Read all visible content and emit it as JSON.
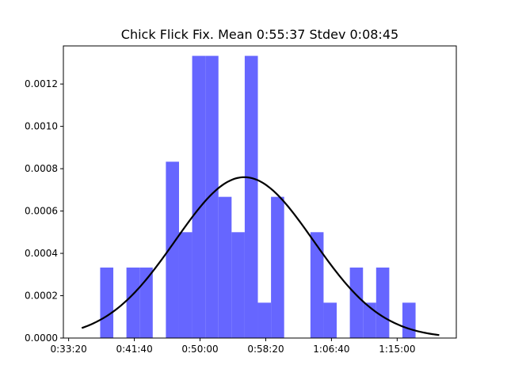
{
  "chart_data": {
    "type": "bar",
    "title": "Chick Flick Fix. Mean 0:55:37 Stdev 0:08:45",
    "xlabel": "",
    "ylabel": "",
    "xlim_seconds": [
      1960,
      4950
    ],
    "ylim": [
      0,
      0.00138
    ],
    "x_ticks": [
      {
        "value": 2000,
        "label": "0:33:20"
      },
      {
        "value": 2500,
        "label": "0:41:40"
      },
      {
        "value": 3000,
        "label": "0:50:00"
      },
      {
        "value": 3500,
        "label": "0:58:20"
      },
      {
        "value": 4000,
        "label": "1:06:40"
      },
      {
        "value": 4500,
        "label": "1:15:00"
      }
    ],
    "y_ticks": [
      {
        "value": 0.0,
        "label": "0.0000"
      },
      {
        "value": 0.0002,
        "label": "0.0002"
      },
      {
        "value": 0.0004,
        "label": "0.0004"
      },
      {
        "value": 0.0006,
        "label": "0.0006"
      },
      {
        "value": 0.0008,
        "label": "0.0008"
      },
      {
        "value": 0.001,
        "label": "0.0010"
      },
      {
        "value": 0.0012,
        "label": "0.0012"
      }
    ],
    "histogram": {
      "color": "#6666ff",
      "bin_width_seconds": 100,
      "bins": [
        {
          "start": 2240,
          "density": 0.000333
        },
        {
          "start": 2340,
          "density": 0.0
        },
        {
          "start": 2440,
          "density": 0.000333
        },
        {
          "start": 2540,
          "density": 0.000333
        },
        {
          "start": 2640,
          "density": 0.0
        },
        {
          "start": 2740,
          "density": 0.000833
        },
        {
          "start": 2840,
          "density": 0.0005
        },
        {
          "start": 2940,
          "density": 0.001333
        },
        {
          "start": 3040,
          "density": 0.001333
        },
        {
          "start": 3140,
          "density": 0.000667
        },
        {
          "start": 3240,
          "density": 0.0005
        },
        {
          "start": 3340,
          "density": 0.001333
        },
        {
          "start": 3440,
          "density": 0.000167
        },
        {
          "start": 3540,
          "density": 0.000667
        },
        {
          "start": 3640,
          "density": 0.0
        },
        {
          "start": 3740,
          "density": 0.0
        },
        {
          "start": 3840,
          "density": 0.0005
        },
        {
          "start": 3940,
          "density": 0.000167
        },
        {
          "start": 4040,
          "density": 0.0
        },
        {
          "start": 4140,
          "density": 0.000333
        },
        {
          "start": 4240,
          "density": 0.000167
        },
        {
          "start": 4340,
          "density": 0.000333
        },
        {
          "start": 4440,
          "density": 0.0
        },
        {
          "start": 4540,
          "density": 0.000167
        }
      ]
    },
    "normal_curve": {
      "color": "#000000",
      "mean_seconds": 3337,
      "stdev_seconds": 525,
      "x_range_seconds": [
        2100,
        4820
      ]
    }
  }
}
